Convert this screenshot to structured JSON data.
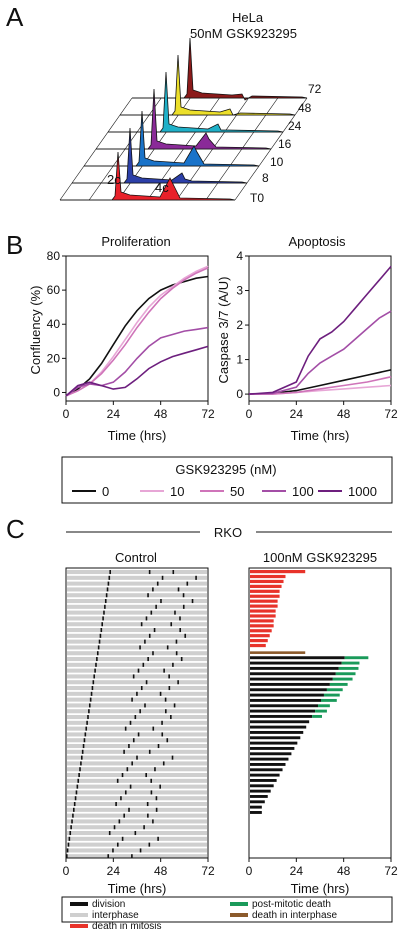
{
  "panelA": {
    "letter": "A",
    "title_line1": "HeLa",
    "title_line2": "50nM GSK923295",
    "time_labels": [
      "T0",
      "8",
      "10",
      "16",
      "24",
      "48",
      "72"
    ],
    "peak_labels": [
      "2c",
      "4c"
    ],
    "colors": [
      "#e8212a",
      "#2c3fa8",
      "#1a73c9",
      "#8a2a98",
      "#1fb0c8",
      "#ecdf2a",
      "#8b1a1a"
    ]
  },
  "panelB": {
    "letter": "B",
    "legend": {
      "title": "GSK923295 (nM)",
      "entries": [
        {
          "label": "0",
          "color": "#111111"
        },
        {
          "label": "10",
          "color": "#e7a6d6"
        },
        {
          "label": "50",
          "color": "#cf74b9"
        },
        {
          "label": "100",
          "color": "#a34ea6"
        },
        {
          "label": "1000",
          "color": "#6d1f7e"
        }
      ]
    }
  },
  "panelC": {
    "letter": "C",
    "group_label": "RKO",
    "control_title": "Control",
    "treated_title": "100nM GSK923295",
    "xlabel": "Time (hrs)",
    "xticks": [
      "0",
      "24",
      "48",
      "72"
    ],
    "legend": [
      {
        "label": "division",
        "color": "#111111"
      },
      {
        "label": "post-mitotic death",
        "color": "#1a9a5a"
      },
      {
        "label": "interphase",
        "color": "#cfcfcf"
      },
      {
        "label": "death in interphase",
        "color": "#8b5a2b"
      },
      {
        "label": "death in mitosis",
        "color": "#e8332a"
      }
    ]
  },
  "chart_data": [
    {
      "type": "line",
      "title": "Proliferation",
      "xlabel": "Time (hrs)",
      "ylabel": "Confluency (%)",
      "xlim": [
        0,
        72
      ],
      "ylim": [
        -5,
        80
      ],
      "xticks": [
        "0",
        "24",
        "48",
        "72"
      ],
      "yticks": [
        "0",
        "20",
        "40",
        "60",
        "80"
      ],
      "series": [
        {
          "name": "0",
          "color": "#111111",
          "points": [
            [
              0,
              -2
            ],
            [
              6,
              2
            ],
            [
              12,
              8
            ],
            [
              18,
              17
            ],
            [
              24,
              28
            ],
            [
              30,
              39
            ],
            [
              36,
              48
            ],
            [
              42,
              55
            ],
            [
              48,
              60
            ],
            [
              54,
              63
            ],
            [
              60,
              65
            ],
            [
              66,
              67
            ],
            [
              72,
              68
            ]
          ]
        },
        {
          "name": "10",
          "color": "#e7a6d6",
          "points": [
            [
              0,
              -2
            ],
            [
              6,
              1
            ],
            [
              12,
              5
            ],
            [
              18,
              12
            ],
            [
              24,
              21
            ],
            [
              30,
              31
            ],
            [
              36,
              41
            ],
            [
              42,
              50
            ],
            [
              48,
              57
            ],
            [
              54,
              62
            ],
            [
              60,
              67
            ],
            [
              66,
              71
            ],
            [
              72,
              74
            ]
          ]
        },
        {
          "name": "50",
          "color": "#cf74b9",
          "points": [
            [
              0,
              -2
            ],
            [
              6,
              1
            ],
            [
              12,
              5
            ],
            [
              18,
              11
            ],
            [
              24,
              19
            ],
            [
              30,
              28
            ],
            [
              36,
              38
            ],
            [
              42,
              47
            ],
            [
              48,
              55
            ],
            [
              54,
              61
            ],
            [
              60,
              66
            ],
            [
              66,
              70
            ],
            [
              72,
              73
            ]
          ]
        },
        {
          "name": "100",
          "color": "#a34ea6",
          "points": [
            [
              0,
              -2
            ],
            [
              6,
              3
            ],
            [
              12,
              5
            ],
            [
              18,
              4
            ],
            [
              24,
              6
            ],
            [
              30,
              12
            ],
            [
              36,
              20
            ],
            [
              42,
              27
            ],
            [
              48,
              32
            ],
            [
              54,
              34
            ],
            [
              60,
              36
            ],
            [
              66,
              37
            ],
            [
              72,
              38
            ]
          ]
        },
        {
          "name": "1000",
          "color": "#6d1f7e",
          "points": [
            [
              0,
              -2
            ],
            [
              6,
              4
            ],
            [
              12,
              6
            ],
            [
              18,
              4
            ],
            [
              24,
              2
            ],
            [
              30,
              3
            ],
            [
              36,
              8
            ],
            [
              42,
              14
            ],
            [
              48,
              18
            ],
            [
              54,
              21
            ],
            [
              60,
              23
            ],
            [
              66,
              25
            ],
            [
              72,
              27
            ]
          ]
        }
      ]
    },
    {
      "type": "line",
      "title": "Apoptosis",
      "xlabel": "Time (hrs)",
      "ylabel": "Caspase 3/7 (A/U)",
      "xlim": [
        0,
        72
      ],
      "ylim": [
        -0.2,
        4
      ],
      "xticks": [
        "0",
        "24",
        "48",
        "72"
      ],
      "yticks": [
        "0",
        "1",
        "2",
        "3",
        "4"
      ],
      "series": [
        {
          "name": "0",
          "color": "#111111",
          "points": [
            [
              0,
              0
            ],
            [
              12,
              0.02
            ],
            [
              24,
              0.1
            ],
            [
              36,
              0.25
            ],
            [
              48,
              0.4
            ],
            [
              60,
              0.55
            ],
            [
              72,
              0.7
            ]
          ]
        },
        {
          "name": "10",
          "color": "#e7a6d6",
          "points": [
            [
              0,
              0
            ],
            [
              12,
              0
            ],
            [
              24,
              0.05
            ],
            [
              36,
              0.1
            ],
            [
              48,
              0.15
            ],
            [
              60,
              0.2
            ],
            [
              72,
              0.25
            ]
          ]
        },
        {
          "name": "50",
          "color": "#cf74b9",
          "points": [
            [
              0,
              0
            ],
            [
              12,
              0
            ],
            [
              24,
              0.05
            ],
            [
              36,
              0.15
            ],
            [
              48,
              0.25
            ],
            [
              60,
              0.35
            ],
            [
              72,
              0.5
            ]
          ]
        },
        {
          "name": "100",
          "color": "#a34ea6",
          "points": [
            [
              0,
              0
            ],
            [
              12,
              0.02
            ],
            [
              24,
              0.2
            ],
            [
              30,
              0.6
            ],
            [
              36,
              0.9
            ],
            [
              42,
              1.1
            ],
            [
              48,
              1.3
            ],
            [
              54,
              1.6
            ],
            [
              60,
              1.9
            ],
            [
              66,
              2.2
            ],
            [
              72,
              2.4
            ]
          ]
        },
        {
          "name": "1000",
          "color": "#6d1f7e",
          "points": [
            [
              0,
              0
            ],
            [
              12,
              0.05
            ],
            [
              24,
              0.35
            ],
            [
              30,
              1.1
            ],
            [
              36,
              1.6
            ],
            [
              42,
              1.8
            ],
            [
              48,
              2.1
            ],
            [
              54,
              2.5
            ],
            [
              60,
              2.9
            ],
            [
              66,
              3.3
            ],
            [
              72,
              3.7
            ]
          ]
        }
      ]
    }
  ]
}
